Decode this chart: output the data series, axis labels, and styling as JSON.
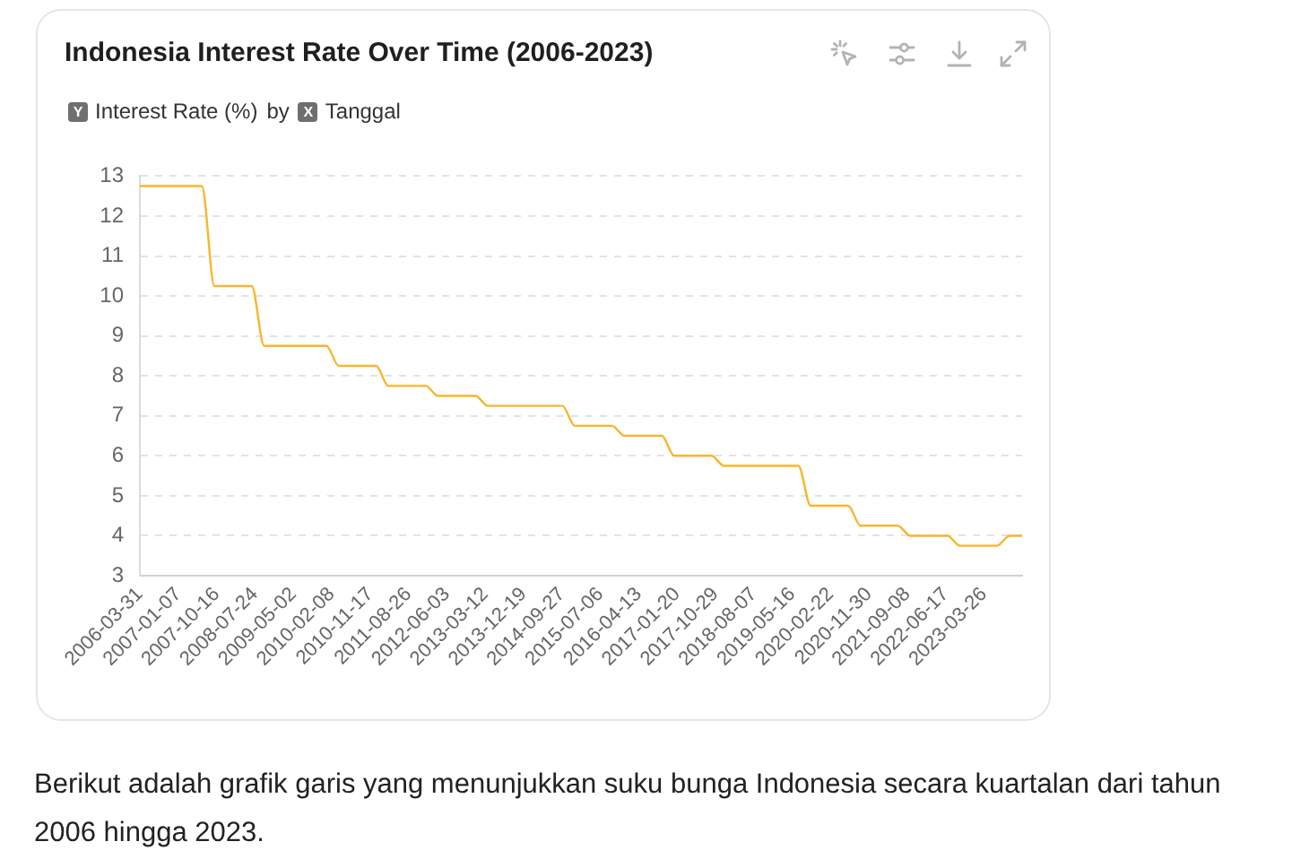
{
  "chart_data": {
    "type": "line",
    "title": "Indonesia Interest Rate Over Time (2006-2023)",
    "ylabel": "Interest Rate (%)",
    "xlabel": "Tanggal",
    "annotations": [
      "Y",
      "by",
      "X",
      "Berikut adalah grafik garis yang menunjukkan suku bunga Indonesia secara kuartalan dari tahun 2006 hingga 2023."
    ],
    "x": [
      "2006-03-31",
      "2006-06-30",
      "2006-09-30",
      "2006-12-31",
      "2007-03-31",
      "2007-06-30",
      "2007-09-30",
      "2007-12-31",
      "2008-03-31",
      "2008-06-30",
      "2008-09-30",
      "2008-12-31",
      "2009-03-31",
      "2009-06-30",
      "2009-09-30",
      "2009-12-31",
      "2010-03-31",
      "2010-06-30",
      "2010-09-30",
      "2010-12-31",
      "2011-03-31",
      "2011-06-30",
      "2011-09-30",
      "2011-12-31",
      "2012-03-31",
      "2012-06-30",
      "2012-09-30",
      "2012-12-31",
      "2013-03-31",
      "2013-06-30",
      "2013-09-30",
      "2013-12-31",
      "2014-03-31",
      "2014-06-30",
      "2014-09-30",
      "2014-12-31",
      "2015-03-31",
      "2015-06-30",
      "2015-09-30",
      "2015-12-31",
      "2016-03-31",
      "2016-06-30",
      "2016-09-30",
      "2016-12-31",
      "2017-03-31",
      "2017-06-30",
      "2017-09-30",
      "2017-12-31",
      "2018-03-31",
      "2018-06-30",
      "2018-09-30",
      "2018-12-31",
      "2019-03-31",
      "2019-06-30",
      "2019-09-30",
      "2019-12-31",
      "2020-03-31",
      "2020-06-30",
      "2020-09-30",
      "2020-12-31",
      "2021-03-31",
      "2021-06-30",
      "2021-09-30",
      "2021-12-31",
      "2022-03-31",
      "2022-06-30",
      "2022-09-30",
      "2022-12-31",
      "2023-03-31",
      "2023-06-30",
      "2023-09-30",
      "2023-12-31"
    ],
    "values": [
      12.75,
      12.75,
      12.75,
      12.75,
      12.75,
      12.75,
      10.25,
      10.25,
      10.25,
      10.25,
      8.75,
      8.75,
      8.75,
      8.75,
      8.75,
      8.75,
      8.25,
      8.25,
      8.25,
      8.25,
      7.75,
      7.75,
      7.75,
      7.75,
      7.5,
      7.5,
      7.5,
      7.5,
      7.25,
      7.25,
      7.25,
      7.25,
      7.25,
      7.25,
      7.25,
      6.75,
      6.75,
      6.75,
      6.75,
      6.5,
      6.5,
      6.5,
      6.5,
      6,
      6,
      6,
      6,
      5.75,
      5.75,
      5.75,
      5.75,
      5.75,
      5.75,
      5.75,
      4.75,
      4.75,
      4.75,
      4.75,
      4.25,
      4.25,
      4.25,
      4.25,
      4,
      4,
      4,
      4,
      3.75,
      3.75,
      3.75,
      3.75,
      4,
      4
    ],
    "color": "#f9b52a",
    "xlim": [
      "2006-03-31",
      "2023-12-31"
    ],
    "xticks": [
      "2006-03-31",
      "2007-01-07",
      "2007-10-16",
      "2008-07-24",
      "2009-05-02",
      "2010-02-08",
      "2010-11-17",
      "2011-08-26",
      "2012-06-03",
      "2013-03-12",
      "2013-12-19",
      "2014-09-27",
      "2015-07-06",
      "2016-04-13",
      "2017-01-20",
      "2017-10-29",
      "2018-08-07",
      "2019-05-16",
      "2020-02-22",
      "2020-11-30",
      "2021-09-08",
      "2022-06-17",
      "2023-03-26"
    ],
    "ylim": [
      3,
      13
    ],
    "yticks": [
      3,
      4,
      5,
      6,
      7,
      8,
      9,
      10,
      11,
      12,
      13
    ],
    "grid": "y"
  }
}
